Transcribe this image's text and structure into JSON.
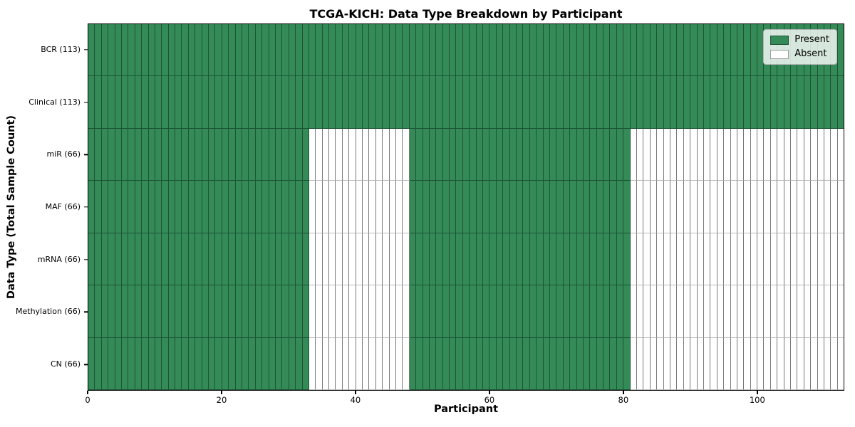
{
  "title": "TCGA-KICH: Data Type Breakdown by Participant",
  "xlabel": "Participant",
  "ylabel": "Data Type (Total Sample Count)",
  "legend": {
    "present_label": "Present",
    "absent_label": "Absent"
  },
  "colors": {
    "present_fill": "#348b58",
    "present_edge": "#1d5434",
    "absent_fill": "#ffffff",
    "absent_edge_vertical": "#787878",
    "absent_edge_horizontal": "#bdbdbd",
    "spine": "#000000",
    "legend_border": "#b3b3b3"
  },
  "chart_data": {
    "type": "heatmap",
    "title": "TCGA-KICH: Data Type Breakdown by Participant",
    "xlabel": "Participant",
    "ylabel": "Data Type (Total Sample Count)",
    "legend_entries": [
      "Present",
      "Absent"
    ],
    "legend_position": "upper right",
    "n_participants": 113,
    "x_ticks": [
      0,
      20,
      40,
      60,
      80,
      100
    ],
    "xlim": [
      0,
      113
    ],
    "grid": false,
    "rows": [
      {
        "label": "BCR (113)",
        "data_type": "BCR",
        "total_samples": 113,
        "present_ranges": [
          [
            0,
            113
          ]
        ]
      },
      {
        "label": "Clinical (113)",
        "data_type": "Clinical",
        "total_samples": 113,
        "present_ranges": [
          [
            0,
            113
          ]
        ]
      },
      {
        "label": "miR (66)",
        "data_type": "miR",
        "total_samples": 66,
        "present_ranges": [
          [
            0,
            33
          ],
          [
            48,
            81
          ]
        ]
      },
      {
        "label": "MAF (66)",
        "data_type": "MAF",
        "total_samples": 66,
        "present_ranges": [
          [
            0,
            33
          ],
          [
            48,
            81
          ]
        ]
      },
      {
        "label": "mRNA (66)",
        "data_type": "mRNA",
        "total_samples": 66,
        "present_ranges": [
          [
            0,
            33
          ],
          [
            48,
            81
          ]
        ]
      },
      {
        "label": "Methylation (66)",
        "data_type": "Methylation",
        "total_samples": 66,
        "present_ranges": [
          [
            0,
            33
          ],
          [
            48,
            81
          ]
        ]
      },
      {
        "label": "CN (66)",
        "data_type": "CN",
        "total_samples": 66,
        "present_ranges": [
          [
            0,
            33
          ],
          [
            48,
            81
          ]
        ]
      }
    ]
  }
}
